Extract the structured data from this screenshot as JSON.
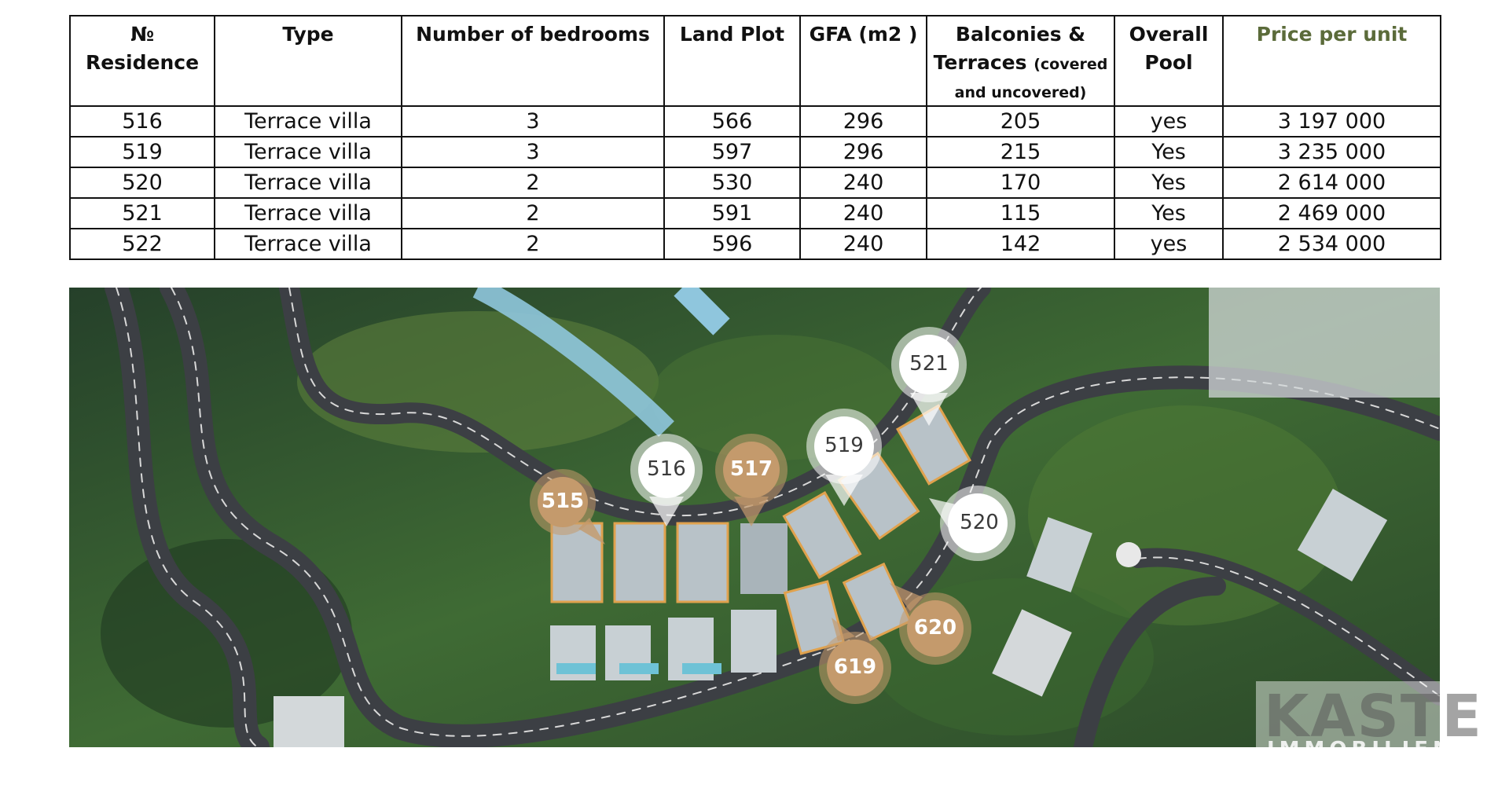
{
  "table": {
    "headers": {
      "residence": [
        "№",
        "Residence"
      ],
      "type": "Type",
      "bedrooms": "Number of bedrooms",
      "land_plot": "Land Plot",
      "gfa": "GFA (m2 )",
      "balconies": [
        "Balconies &",
        "Terraces",
        "(covered",
        "and uncovered)"
      ],
      "pool": [
        "Overall",
        "Pool"
      ],
      "price": "Price per unit"
    },
    "rows": [
      {
        "no": "516",
        "type": "Terrace villa",
        "bedrooms": "3",
        "land_plot": "566",
        "gfa": "296",
        "balconies": "205",
        "pool": "yes",
        "price": "3 197 000"
      },
      {
        "no": "519",
        "type": "Terrace villa",
        "bedrooms": "3",
        "land_plot": "597",
        "gfa": "296",
        "balconies": "215",
        "pool": "Yes",
        "price": "3 235 000"
      },
      {
        "no": "520",
        "type": "Terrace villa",
        "bedrooms": "2",
        "land_plot": "530",
        "gfa": "240",
        "balconies": "170",
        "pool": "Yes",
        "price": "2 614 000"
      },
      {
        "no": "521",
        "type": "Terrace villa",
        "bedrooms": "2",
        "land_plot": "591",
        "gfa": "240",
        "balconies": "115",
        "pool": "Yes",
        "price": "2 469 000"
      },
      {
        "no": "522",
        "type": "Terrace villa",
        "bedrooms": "2",
        "land_plot": "596",
        "gfa": "240",
        "balconies": "142",
        "pool": "yes",
        "price": "2 534 000"
      }
    ]
  },
  "map": {
    "pins": [
      {
        "label": "515",
        "style": "tan"
      },
      {
        "label": "516",
        "style": "white"
      },
      {
        "label": "517",
        "style": "tan"
      },
      {
        "label": "519",
        "style": "white"
      },
      {
        "label": "520",
        "style": "white"
      },
      {
        "label": "521",
        "style": "white"
      },
      {
        "label": "619",
        "style": "tan"
      },
      {
        "label": "620",
        "style": "tan"
      }
    ],
    "watermark": {
      "line1": "KASTE",
      "line2": "IMMOBILIEN"
    }
  },
  "colors": {
    "price_header": "#5b6b3a",
    "pin_tan": "#c49a6c",
    "pin_white": "#ffffff",
    "plot_outline": "#e0a24e",
    "road": "#3c3f44",
    "vegetation": "#3d6b32"
  }
}
